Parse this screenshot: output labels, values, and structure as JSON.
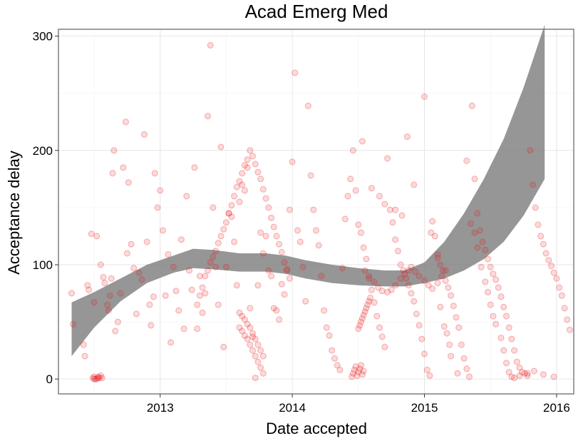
{
  "chart_data": {
    "type": "scatter",
    "title": "Acad Emerg Med",
    "xlabel": "Date accepted",
    "ylabel": "Acceptance delay",
    "xlim": [
      2012.23,
      2016.13
    ],
    "ylim": [
      -13,
      306
    ],
    "x_ticks": [
      {
        "value": 2013,
        "label": "2013"
      },
      {
        "value": 2014,
        "label": "2014"
      },
      {
        "value": 2015,
        "label": "2015"
      },
      {
        "value": 2016,
        "label": "2016"
      }
    ],
    "y_ticks": [
      {
        "value": 0,
        "label": "0"
      },
      {
        "value": 100,
        "label": "100"
      },
      {
        "value": 200,
        "label": "200"
      },
      {
        "value": 300,
        "label": "300"
      }
    ],
    "grid": true,
    "point_color": "#e8191c",
    "smooth_band_color": "#7f7f7f",
    "smooth_band": [
      {
        "x": 2012.33,
        "lo": 20,
        "hi": 67
      },
      {
        "x": 2012.5,
        "lo": 45,
        "hi": 76
      },
      {
        "x": 2012.7,
        "lo": 68,
        "hi": 88
      },
      {
        "x": 2012.9,
        "lo": 84,
        "hi": 100
      },
      {
        "x": 2013.1,
        "lo": 93,
        "hi": 108
      },
      {
        "x": 2013.25,
        "lo": 97,
        "hi": 114
      },
      {
        "x": 2013.4,
        "lo": 96,
        "hi": 113
      },
      {
        "x": 2013.6,
        "lo": 94,
        "hi": 110
      },
      {
        "x": 2013.8,
        "lo": 94,
        "hi": 110
      },
      {
        "x": 2013.95,
        "lo": 92,
        "hi": 108
      },
      {
        "x": 2014.1,
        "lo": 88,
        "hi": 104
      },
      {
        "x": 2014.3,
        "lo": 84,
        "hi": 100
      },
      {
        "x": 2014.5,
        "lo": 82,
        "hi": 97
      },
      {
        "x": 2014.7,
        "lo": 81,
        "hi": 95
      },
      {
        "x": 2014.85,
        "lo": 81,
        "hi": 95
      },
      {
        "x": 2015.0,
        "lo": 84,
        "hi": 102
      },
      {
        "x": 2015.15,
        "lo": 88,
        "hi": 120
      },
      {
        "x": 2015.3,
        "lo": 95,
        "hi": 145
      },
      {
        "x": 2015.45,
        "lo": 105,
        "hi": 175
      },
      {
        "x": 2015.6,
        "lo": 120,
        "hi": 210
      },
      {
        "x": 2015.75,
        "lo": 143,
        "hi": 255
      },
      {
        "x": 2015.91,
        "lo": 175,
        "hi": 310
      }
    ],
    "points": [
      [
        2012.52,
        0
      ],
      [
        2012.53,
        1
      ],
      [
        2012.5,
        2
      ],
      [
        2012.54,
        1
      ],
      [
        2012.51,
        0
      ],
      [
        2012.55,
        3
      ],
      [
        2012.49,
        1
      ],
      [
        2012.53,
        2
      ],
      [
        2012.56,
        1
      ],
      [
        2012.5,
        0
      ],
      [
        2012.33,
        75
      ],
      [
        2012.34,
        48
      ],
      [
        2012.42,
        30
      ],
      [
        2012.43,
        20
      ],
      [
        2012.45,
        82
      ],
      [
        2012.46,
        78
      ],
      [
        2012.48,
        127
      ],
      [
        2012.5,
        67
      ],
      [
        2012.52,
        125
      ],
      [
        2012.55,
        100
      ],
      [
        2012.57,
        89
      ],
      [
        2012.58,
        84
      ],
      [
        2012.6,
        65
      ],
      [
        2012.61,
        60
      ],
      [
        2012.62,
        73
      ],
      [
        2012.63,
        88
      ],
      [
        2012.64,
        180
      ],
      [
        2012.65,
        200
      ],
      [
        2012.66,
        42
      ],
      [
        2012.68,
        50
      ],
      [
        2012.7,
        75
      ],
      [
        2012.72,
        185
      ],
      [
        2012.74,
        225
      ],
      [
        2012.75,
        110
      ],
      [
        2012.76,
        172
      ],
      [
        2012.78,
        118
      ],
      [
        2012.8,
        97
      ],
      [
        2012.82,
        57
      ],
      [
        2012.84,
        93
      ],
      [
        2012.86,
        87
      ],
      [
        2012.88,
        214
      ],
      [
        2012.9,
        120
      ],
      [
        2012.92,
        65
      ],
      [
        2012.93,
        47
      ],
      [
        2012.95,
        72
      ],
      [
        2012.96,
        180
      ],
      [
        2012.98,
        150
      ],
      [
        2013.0,
        165
      ],
      [
        2013.02,
        130
      ],
      [
        2013.04,
        73
      ],
      [
        2013.06,
        109
      ],
      [
        2013.08,
        32
      ],
      [
        2013.1,
        98
      ],
      [
        2013.12,
        77
      ],
      [
        2013.14,
        60
      ],
      [
        2013.16,
        122
      ],
      [
        2013.18,
        44
      ],
      [
        2013.2,
        160
      ],
      [
        2013.22,
        95
      ],
      [
        2013.24,
        78
      ],
      [
        2013.26,
        185
      ],
      [
        2013.28,
        44
      ],
      [
        2013.3,
        90
      ],
      [
        2013.32,
        58
      ],
      [
        2013.34,
        75
      ],
      [
        2013.36,
        230
      ],
      [
        2013.38,
        292
      ],
      [
        2013.4,
        150
      ],
      [
        2013.42,
        98
      ],
      [
        2013.44,
        65
      ],
      [
        2013.46,
        203
      ],
      [
        2013.48,
        28
      ],
      [
        2013.5,
        98
      ],
      [
        2013.52,
        145
      ],
      [
        2013.54,
        142
      ],
      [
        2013.56,
        120
      ],
      [
        2013.58,
        82
      ],
      [
        2013.6,
        155
      ],
      [
        2013.62,
        170
      ],
      [
        2013.64,
        165
      ],
      [
        2013.66,
        185
      ],
      [
        2013.68,
        62
      ],
      [
        2013.7,
        37
      ],
      [
        2013.72,
        1
      ],
      [
        2013.74,
        82
      ],
      [
        2013.76,
        128
      ],
      [
        2013.78,
        110
      ],
      [
        2013.8,
        125
      ],
      [
        2013.82,
        95
      ],
      [
        2013.84,
        90
      ],
      [
        2013.86,
        62
      ],
      [
        2013.88,
        60
      ],
      [
        2013.9,
        52
      ],
      [
        2013.92,
        83
      ],
      [
        2013.94,
        74
      ],
      [
        2013.96,
        95
      ],
      [
        2013.98,
        148
      ],
      [
        2014.0,
        190
      ],
      [
        2014.02,
        268
      ],
      [
        2014.04,
        130
      ],
      [
        2014.06,
        120
      ],
      [
        2014.08,
        98
      ],
      [
        2014.1,
        68
      ],
      [
        2014.12,
        239
      ],
      [
        2014.14,
        178
      ],
      [
        2014.16,
        148
      ],
      [
        2014.18,
        130
      ],
      [
        2014.2,
        117
      ],
      [
        2014.22,
        90
      ],
      [
        2014.24,
        60
      ],
      [
        2014.26,
        45
      ],
      [
        2014.28,
        38
      ],
      [
        2014.3,
        25
      ],
      [
        2014.32,
        18
      ],
      [
        2014.34,
        12
      ],
      [
        2014.36,
        8
      ],
      [
        2014.38,
        97
      ],
      [
        2014.4,
        140
      ],
      [
        2014.42,
        160
      ],
      [
        2014.44,
        175
      ],
      [
        2014.46,
        200
      ],
      [
        2014.48,
        165
      ],
      [
        2014.5,
        135
      ],
      [
        2014.52,
        128
      ],
      [
        2014.54,
        115
      ],
      [
        2014.56,
        105
      ],
      [
        2014.58,
        88
      ],
      [
        2014.6,
        78
      ],
      [
        2014.62,
        67
      ],
      [
        2014.64,
        55
      ],
      [
        2014.66,
        45
      ],
      [
        2014.68,
        37
      ],
      [
        2014.7,
        28
      ],
      [
        2014.72,
        193
      ],
      [
        2014.74,
        148
      ],
      [
        2014.76,
        137
      ],
      [
        2014.78,
        122
      ],
      [
        2014.8,
        112
      ],
      [
        2014.82,
        100
      ],
      [
        2014.84,
        95
      ],
      [
        2014.86,
        88
      ],
      [
        2014.88,
        82
      ],
      [
        2014.9,
        75
      ],
      [
        2014.92,
        68
      ],
      [
        2014.94,
        57
      ],
      [
        2014.96,
        47
      ],
      [
        2014.98,
        35
      ],
      [
        2015.0,
        22
      ],
      [
        2015.02,
        8
      ],
      [
        2015.04,
        3
      ],
      [
        2015.06,
        138
      ],
      [
        2015.08,
        125
      ],
      [
        2015.1,
        106
      ],
      [
        2015.12,
        100
      ],
      [
        2015.14,
        95
      ],
      [
        2015.16,
        86
      ],
      [
        2015.18,
        80
      ],
      [
        2015.2,
        73
      ],
      [
        2015.22,
        64
      ],
      [
        2015.24,
        54
      ],
      [
        2015.26,
        45
      ],
      [
        2015.28,
        30
      ],
      [
        2015.3,
        18
      ],
      [
        2015.32,
        9
      ],
      [
        2015.34,
        2
      ],
      [
        2015.36,
        239
      ],
      [
        2015.38,
        175
      ],
      [
        2015.4,
        145
      ],
      [
        2015.42,
        130
      ],
      [
        2015.44,
        120
      ],
      [
        2015.46,
        113
      ],
      [
        2015.48,
        105
      ],
      [
        2015.5,
        98
      ],
      [
        2015.52,
        92
      ],
      [
        2015.54,
        87
      ],
      [
        2015.56,
        80
      ],
      [
        2015.58,
        72
      ],
      [
        2015.6,
        63
      ],
      [
        2015.62,
        55
      ],
      [
        2015.64,
        45
      ],
      [
        2015.66,
        35
      ],
      [
        2015.68,
        25
      ],
      [
        2015.7,
        15
      ],
      [
        2015.72,
        10
      ],
      [
        2015.74,
        6
      ],
      [
        2015.76,
        5
      ],
      [
        2015.78,
        3
      ],
      [
        2015.8,
        200
      ],
      [
        2015.82,
        170
      ],
      [
        2015.84,
        150
      ],
      [
        2015.86,
        135
      ],
      [
        2015.88,
        125
      ],
      [
        2015.9,
        118
      ],
      [
        2015.92,
        110
      ],
      [
        2015.94,
        104
      ],
      [
        2015.96,
        99
      ],
      [
        2015.98,
        93
      ],
      [
        2016.0,
        88
      ],
      [
        2016.02,
        80
      ],
      [
        2016.04,
        73
      ],
      [
        2016.06,
        62
      ],
      [
        2016.08,
        52
      ],
      [
        2016.1,
        43
      ],
      [
        2014.55,
        95
      ],
      [
        2014.58,
        90
      ],
      [
        2014.62,
        85
      ],
      [
        2014.65,
        80
      ],
      [
        2014.68,
        77
      ],
      [
        2014.72,
        76
      ],
      [
        2014.75,
        78
      ],
      [
        2014.78,
        82
      ],
      [
        2014.82,
        88
      ],
      [
        2014.85,
        92
      ],
      [
        2014.88,
        95
      ],
      [
        2014.9,
        98
      ],
      [
        2014.93,
        94
      ],
      [
        2014.96,
        90
      ],
      [
        2015.0,
        86
      ],
      [
        2015.03,
        82
      ],
      [
        2015.06,
        79
      ],
      [
        2015.1,
        84
      ],
      [
        2015.13,
        90
      ],
      [
        2015.16,
        95
      ],
      [
        2014.53,
        208
      ],
      [
        2014.6,
        167
      ],
      [
        2014.66,
        160
      ],
      [
        2014.7,
        153
      ],
      [
        2014.78,
        148
      ],
      [
        2014.83,
        143
      ],
      [
        2014.87,
        212
      ],
      [
        2014.92,
        170
      ],
      [
        2015.0,
        247
      ],
      [
        2015.05,
        128
      ],
      [
        2015.1,
        109
      ],
      [
        2015.12,
        63
      ],
      [
        2015.15,
        46
      ],
      [
        2015.17,
        40
      ],
      [
        2015.19,
        30
      ],
      [
        2015.2,
        20
      ],
      [
        2015.25,
        5
      ],
      [
        2015.32,
        191
      ],
      [
        2015.35,
        136
      ],
      [
        2015.38,
        128
      ],
      [
        2015.4,
        115
      ],
      [
        2015.43,
        98
      ],
      [
        2015.46,
        85
      ],
      [
        2015.48,
        76
      ],
      [
        2015.5,
        65
      ],
      [
        2015.52,
        55
      ],
      [
        2015.54,
        48
      ],
      [
        2015.58,
        36
      ],
      [
        2015.6,
        25
      ],
      [
        2015.62,
        14
      ],
      [
        2015.64,
        6
      ],
      [
        2015.66,
        2
      ],
      [
        2015.68,
        1
      ],
      [
        2015.72,
        3
      ],
      [
        2015.78,
        5
      ],
      [
        2015.83,
        7
      ],
      [
        2015.9,
        4
      ],
      [
        2015.98,
        2
      ],
      [
        2013.28,
        65
      ],
      [
        2013.3,
        73
      ],
      [
        2013.32,
        80
      ],
      [
        2013.34,
        90
      ],
      [
        2013.36,
        95
      ],
      [
        2013.38,
        102
      ],
      [
        2013.4,
        107
      ],
      [
        2013.42,
        112
      ],
      [
        2013.44,
        119
      ],
      [
        2013.46,
        125
      ],
      [
        2013.48,
        131
      ],
      [
        2013.5,
        137
      ],
      [
        2013.52,
        145
      ],
      [
        2013.54,
        152
      ],
      [
        2013.56,
        160
      ],
      [
        2013.58,
        168
      ],
      [
        2013.6,
        173
      ],
      [
        2013.62,
        180
      ],
      [
        2013.64,
        187
      ],
      [
        2013.66,
        192
      ],
      [
        2013.68,
        200
      ],
      [
        2013.7,
        195
      ],
      [
        2013.72,
        188
      ],
      [
        2013.74,
        181
      ],
      [
        2013.76,
        175
      ],
      [
        2013.78,
        166
      ],
      [
        2013.8,
        158
      ],
      [
        2013.82,
        150
      ],
      [
        2013.84,
        141
      ],
      [
        2013.86,
        133
      ],
      [
        2013.88,
        125
      ],
      [
        2013.9,
        118
      ],
      [
        2013.92,
        111
      ],
      [
        2013.94,
        102
      ],
      [
        2013.96,
        96
      ],
      [
        2013.98,
        88
      ],
      [
        2013.6,
        45
      ],
      [
        2013.62,
        42
      ],
      [
        2013.64,
        38
      ],
      [
        2013.66,
        35
      ],
      [
        2013.68,
        30
      ],
      [
        2013.7,
        25
      ],
      [
        2013.72,
        20
      ],
      [
        2013.74,
        15
      ],
      [
        2013.76,
        10
      ],
      [
        2013.78,
        5
      ],
      [
        2013.6,
        58
      ],
      [
        2013.62,
        55
      ],
      [
        2013.64,
        52
      ],
      [
        2013.66,
        48
      ],
      [
        2013.68,
        45
      ],
      [
        2013.7,
        40
      ],
      [
        2013.72,
        35
      ],
      [
        2013.74,
        30
      ],
      [
        2013.76,
        25
      ],
      [
        2013.78,
        20
      ],
      [
        2014.45,
        2
      ],
      [
        2014.46,
        5
      ],
      [
        2014.47,
        8
      ],
      [
        2014.48,
        11
      ],
      [
        2014.49,
        3
      ],
      [
        2014.5,
        6
      ],
      [
        2014.51,
        9
      ],
      [
        2014.52,
        12
      ],
      [
        2014.53,
        4
      ],
      [
        2014.54,
        7
      ],
      [
        2014.5,
        44
      ],
      [
        2014.51,
        47
      ],
      [
        2014.52,
        50
      ],
      [
        2014.53,
        53
      ],
      [
        2014.54,
        56
      ],
      [
        2014.55,
        59
      ],
      [
        2014.56,
        62
      ],
      [
        2014.57,
        65
      ],
      [
        2014.58,
        68
      ],
      [
        2014.59,
        71
      ]
    ]
  }
}
